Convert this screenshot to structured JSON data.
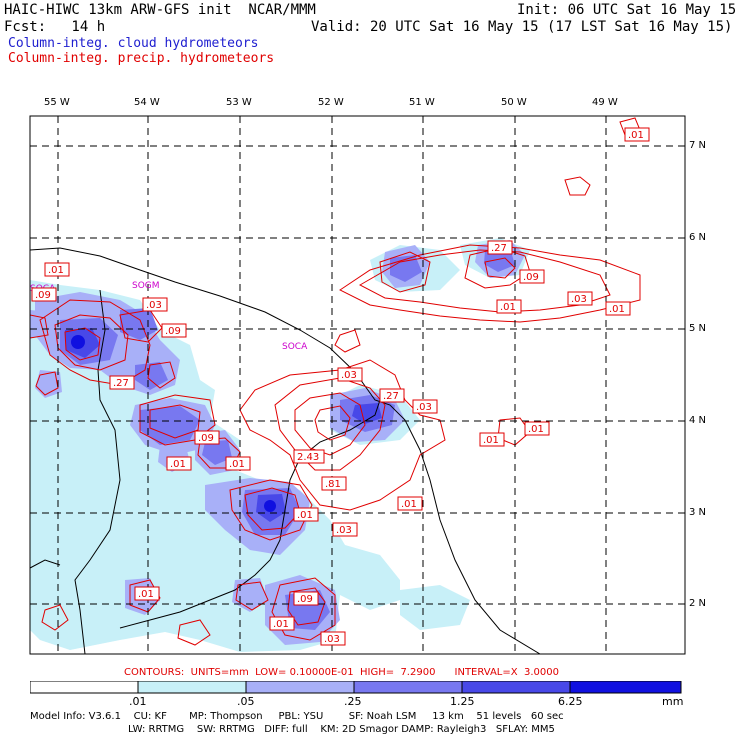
{
  "header": {
    "model_line": "HAIC-HIWC 13km ARW-GFS init  NCAR/MMM",
    "init_line": "Init: 06 UTC Sat 16 May 15",
    "fcst_line": "Fcst:   14 h",
    "valid_line": "Valid: 20 UTC Sat 16 May 15 (17 LST Sat 16 May 15)",
    "field1": "Column-integ. cloud hydrometeors",
    "field2": "Column-integ. precip. hydrometeors"
  },
  "colors": {
    "cloud_label": "#2020d0",
    "precip_label": "#e00000",
    "contour": "#e00000",
    "shade": [
      "#ffffff",
      "#c8f0f8",
      "#a8b0f8",
      "#7878f0",
      "#4848e8",
      "#1010e0"
    ]
  },
  "axes": {
    "lon_labels": [
      "55 W",
      "54 W",
      "53 W",
      "52 W",
      "51 W",
      "50 W",
      "49 W"
    ],
    "lat_labels": [
      "7 N",
      "6 N",
      "5 N",
      "4 N",
      "3 N",
      "2 N"
    ]
  },
  "stations": [
    "SOCA",
    "SOCA",
    "SOGM"
  ],
  "contour_labels": [
    ".01",
    ".01",
    ".03",
    ".09",
    ".27",
    ".09",
    ".01",
    ".03",
    ".01",
    ".27",
    ".03",
    ".01",
    ".01",
    ".09",
    "2.43",
    ".81",
    ".01",
    ".03",
    ".01",
    ".09",
    ".01",
    ".03",
    ".27",
    ".01",
    ".03",
    ".01",
    ".01",
    ".09"
  ],
  "contour_info": "CONTOURS:  UNITS=mm  LOW= 0.10000E-01  HIGH=  7.2900      INTERVAL=X  3.0000",
  "colorbar": {
    "ticks": [
      ".01",
      ".05",
      ".25",
      "1.25",
      "6.25"
    ],
    "units": "mm"
  },
  "model_info": {
    "line1": "Model Info: V3.6.1    CU: KF       MP: Thompson     PBL: YSU        SF: Noah LSM     13 km    51 levels   60 sec",
    "line2": "LW: RRTMG    SW: RRTMG   DIFF: full    KM: 2D Smagor DAMP: Rayleigh3   SFLAY: MM5"
  }
}
